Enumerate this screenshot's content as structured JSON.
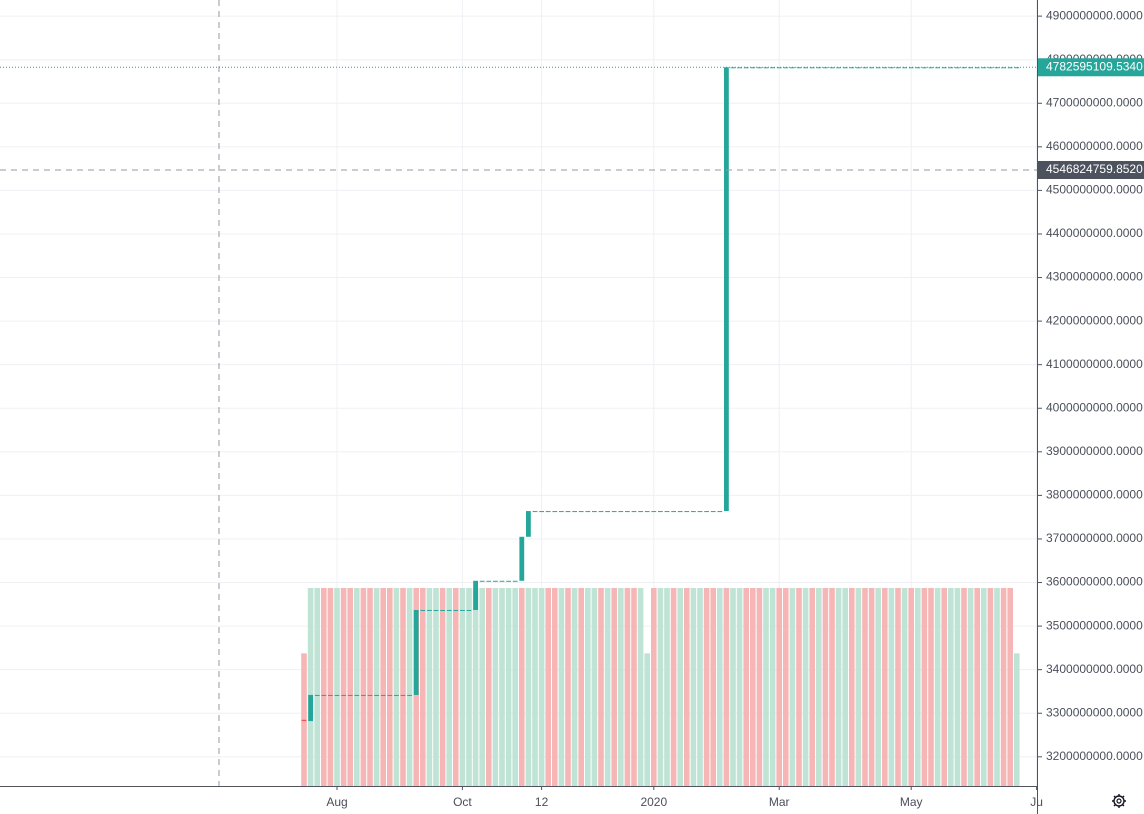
{
  "chart_data": {
    "type": "candlestick",
    "categories": [
      null,
      null,
      null,
      null,
      null,
      "Aug",
      null,
      null,
      null,
      null,
      null,
      null,
      null,
      null,
      null,
      null,
      null,
      null,
      null,
      null,
      null,
      null,
      null,
      null,
      "Oct",
      null,
      null,
      null,
      null,
      null,
      null,
      null,
      null,
      null,
      null,
      null,
      "12",
      null,
      null,
      null,
      null,
      null,
      null,
      null,
      null,
      null,
      null,
      null,
      null,
      null,
      null,
      null,
      null,
      "2020",
      null,
      null,
      null,
      null,
      null,
      null,
      null,
      null,
      null,
      null,
      null,
      null,
      null,
      null,
      null,
      null,
      null,
      null,
      "Mar",
      null,
      null,
      null,
      null,
      null,
      null,
      null,
      null,
      null,
      null,
      null,
      null,
      null,
      null,
      null,
      null,
      null,
      null,
      null,
      "May",
      null,
      null,
      null,
      null,
      null,
      null,
      null,
      null,
      null,
      null,
      null,
      null,
      null,
      null,
      null,
      null,
      null,
      null,
      "Ju"
    ],
    "open": [
      3285000000,
      3282000000,
      3342000000,
      3342000000,
      3342000000,
      3342000000,
      3342000000,
      3342000000,
      3342000000,
      3342000000,
      3342000000,
      3342000000,
      3342000000,
      3342000000,
      3342000000,
      3342000000,
      3342000000,
      3342000000,
      3537000000,
      3537000000,
      3537000000,
      3537000000,
      3537000000,
      3537000000,
      3537000000,
      3537000000,
      3537000000,
      3604000000,
      3604000000,
      3604000000,
      3604000000,
      3604000000,
      3604000000,
      3604000000,
      3705000000,
      3764000000,
      3764000000,
      3764000000,
      3764000000,
      3764000000,
      3764000000,
      3764000000,
      3764000000,
      3764000000,
      3764000000,
      3764000000,
      3764000000,
      3764000000,
      3764000000,
      3764000000,
      3764000000,
      3764000000,
      3764000000,
      3764000000,
      3764000000,
      3764000000,
      3764000000,
      3764000000,
      3764000000,
      3764000000,
      3764000000,
      3764000000,
      3764000000,
      3764000000,
      3764000000,
      4782595109.534,
      4782595109.534,
      4782595109.534,
      4782595109.534,
      4782595109.534,
      4782595109.534,
      4782595109.534,
      4782595109.534,
      4782595109.534,
      4782595109.534,
      4782595109.534,
      4782595109.534,
      4782595109.534,
      4782595109.534,
      4782595109.534,
      4782595109.534,
      4782595109.534,
      4782595109.534,
      4782595109.534,
      4782595109.534,
      4782595109.534,
      4782595109.534,
      4782595109.534,
      4782595109.534,
      4782595109.534,
      4782595109.534,
      4782595109.534,
      4782595109.534,
      4782595109.534,
      4782595109.534,
      4782595109.534,
      4782595109.534,
      4782595109.534,
      4782595109.534,
      4782595109.534,
      4782595109.534,
      4782595109.534,
      4782595109.534,
      4782595109.534,
      4782595109.534,
      4782595109.534,
      4782595109.534,
      4782595109.534,
      4782595109.534,
      null,
      null,
      null
    ],
    "close": [
      3282000000,
      3342000000,
      3342000000,
      3342000000,
      3342000000,
      3342000000,
      3342000000,
      3342000000,
      3342000000,
      3342000000,
      3342000000,
      3342000000,
      3342000000,
      3342000000,
      3342000000,
      3342000000,
      3342000000,
      3537000000,
      3537000000,
      3537000000,
      3537000000,
      3537000000,
      3537000000,
      3537000000,
      3537000000,
      3537000000,
      3604000000,
      3604000000,
      3604000000,
      3604000000,
      3604000000,
      3604000000,
      3604000000,
      3705000000,
      3764000000,
      3764000000,
      3764000000,
      3764000000,
      3764000000,
      3764000000,
      3764000000,
      3764000000,
      3764000000,
      3764000000,
      3764000000,
      3764000000,
      3764000000,
      3764000000,
      3764000000,
      3764000000,
      3764000000,
      3764000000,
      3764000000,
      3764000000,
      3764000000,
      3764000000,
      3764000000,
      3764000000,
      3764000000,
      3764000000,
      3764000000,
      3764000000,
      3764000000,
      3764000000,
      4782595109.534,
      4782595109.534,
      4782595109.534,
      4782595109.534,
      4782595109.534,
      4782595109.534,
      4782595109.534,
      4782595109.534,
      4782595109.534,
      4782595109.534,
      4782595109.534,
      4782595109.534,
      4782595109.534,
      4782595109.534,
      4782595109.534,
      4782595109.534,
      4782595109.534,
      4782595109.534,
      4782595109.534,
      4782595109.534,
      4782595109.534,
      4782595109.534,
      4782595109.534,
      4782595109.534,
      4782595109.534,
      4782595109.534,
      4782595109.534,
      4782595109.534,
      4782595109.534,
      4782595109.534,
      4782595109.534,
      4782595109.534,
      4782595109.534,
      4782595109.534,
      4782595109.534,
      4782595109.534,
      4782595109.534,
      4782595109.534,
      4782595109.534,
      4782595109.534,
      4782595109.534,
      4782595109.534,
      4782595109.534,
      4782595109.534,
      4782595109.534,
      null,
      null,
      null
    ],
    "volume": [
      0.67,
      1,
      1,
      1,
      1,
      1,
      1,
      1,
      1,
      1,
      1,
      1,
      1,
      1,
      1,
      1,
      1,
      1,
      1,
      1,
      1,
      1,
      1,
      1,
      1,
      1,
      1,
      1,
      1,
      1,
      1,
      1,
      1,
      1,
      1,
      1,
      1,
      1,
      1,
      1,
      1,
      1,
      1,
      1,
      1,
      1,
      1,
      1,
      1,
      1,
      1,
      1,
      0.67,
      1,
      1,
      1,
      1,
      1,
      1,
      1,
      1,
      1,
      1,
      1,
      1,
      1,
      1,
      1,
      1,
      1,
      1,
      1,
      1,
      1,
      1,
      1,
      1,
      1,
      1,
      1,
      1,
      1,
      1,
      1,
      1,
      1,
      1,
      1,
      1,
      1,
      1,
      1,
      1,
      1,
      1,
      1,
      1,
      1,
      1,
      1,
      1,
      1,
      1,
      1,
      1,
      1,
      1,
      1,
      0.67,
      null,
      null,
      null
    ],
    "volume_up": [
      false,
      true,
      true,
      false,
      false,
      true,
      false,
      false,
      true,
      false,
      false,
      true,
      false,
      false,
      true,
      false,
      true,
      false,
      false,
      true,
      true,
      false,
      true,
      false,
      true,
      true,
      true,
      true,
      false,
      true,
      true,
      true,
      true,
      false,
      true,
      true,
      true,
      false,
      false,
      true,
      false,
      true,
      false,
      true,
      true,
      false,
      true,
      false,
      true,
      false,
      false,
      true,
      true,
      false,
      true,
      true,
      false,
      true,
      false,
      true,
      true,
      false,
      false,
      true,
      false,
      true,
      true,
      false,
      false,
      false,
      true,
      true,
      false,
      false,
      true,
      false,
      true,
      false,
      true,
      false,
      false,
      true,
      true,
      false,
      true,
      false,
      false,
      true,
      false,
      true,
      false,
      true,
      false,
      true,
      false,
      false,
      true,
      false,
      true,
      true,
      false,
      true,
      false,
      true,
      false,
      true,
      false,
      false,
      true,
      null,
      null,
      null
    ],
    "volume_ylim": [
      0,
      1
    ],
    "up_color": "#26a69a",
    "down_color": "#ef5350",
    "volume_up_color": "#bfe3d5",
    "volume_down_color": "#f6b6b6",
    "ylim": [
      3133000000,
      4937000000
    ],
    "yticks": [
      {
        "value": 3200000000,
        "label": "3200000000.0000"
      },
      {
        "value": 3300000000,
        "label": "3300000000.0000"
      },
      {
        "value": 3400000000,
        "label": "3400000000.0000"
      },
      {
        "value": 3500000000,
        "label": "3500000000.0000"
      },
      {
        "value": 3600000000,
        "label": "3600000000.0000"
      },
      {
        "value": 3700000000,
        "label": "3700000000.0000"
      },
      {
        "value": 3800000000,
        "label": "3800000000.0000"
      },
      {
        "value": 3900000000,
        "label": "3900000000.0000"
      },
      {
        "value": 4000000000,
        "label": "4000000000.0000"
      },
      {
        "value": 4100000000,
        "label": "4100000000.0000"
      },
      {
        "value": 4200000000,
        "label": "4200000000.0000"
      },
      {
        "value": 4300000000,
        "label": "4300000000.0000"
      },
      {
        "value": 4400000000,
        "label": "4400000000.0000"
      },
      {
        "value": 4500000000,
        "label": "4500000000.0000"
      },
      {
        "value": 4600000000,
        "label": "4600000000.0000"
      },
      {
        "value": 4700000000,
        "label": "4700000000.0000"
      },
      {
        "value": 4800000000,
        "label": "4800000000.0000"
      },
      {
        "value": 4900000000,
        "label": "4900000000.0000"
      }
    ],
    "grid": true,
    "last_price": {
      "value": 4782595109.534,
      "label": "4782595109.5340"
    },
    "crosshair_price": {
      "value": 4546824759.852,
      "label": "4546824759.8520"
    }
  }
}
